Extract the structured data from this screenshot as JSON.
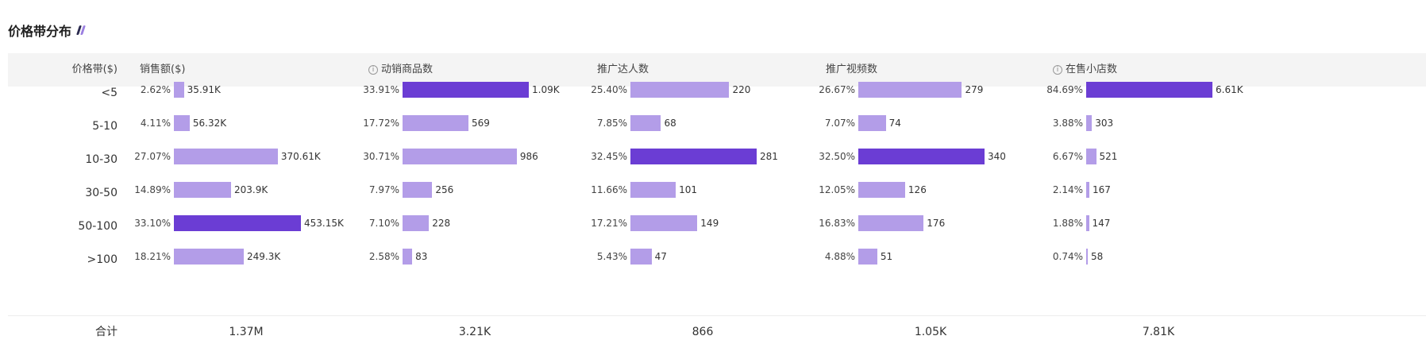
{
  "title": "价格带分布",
  "header": {
    "price_band": "价格带($)",
    "columns": [
      {
        "label": "销售额($)",
        "info": false
      },
      {
        "label": "动销商品数",
        "info": true
      },
      {
        "label": "推广达人数",
        "info": false
      },
      {
        "label": "推广视频数",
        "info": false
      },
      {
        "label": "在售小店数",
        "info": true
      }
    ]
  },
  "chart_data": {
    "type": "bar",
    "categories": [
      "<5",
      "5-10",
      "10-30",
      "30-50",
      "50-100",
      ">100"
    ],
    "series": [
      {
        "name": "销售额($)",
        "percent": [
          "2.62%",
          "4.11%",
          "27.07%",
          "14.89%",
          "33.10%",
          "18.21%"
        ],
        "display": [
          "35.91K",
          "56.32K",
          "370.61K",
          "203.9K",
          "453.15K",
          "249.3K"
        ],
        "values": [
          35910,
          56320,
          370610,
          203900,
          453150,
          249300
        ],
        "total": "1.37M"
      },
      {
        "name": "动销商品数",
        "percent": [
          "33.91%",
          "17.72%",
          "30.71%",
          "7.97%",
          "7.10%",
          "2.58%"
        ],
        "display": [
          "1.09K",
          "569",
          "986",
          "256",
          "228",
          "83"
        ],
        "values": [
          1090,
          569,
          986,
          256,
          228,
          83
        ],
        "total": "3.21K"
      },
      {
        "name": "推广达人数",
        "percent": [
          "25.40%",
          "7.85%",
          "32.45%",
          "11.66%",
          "17.21%",
          "5.43%"
        ],
        "display": [
          "220",
          "68",
          "281",
          "101",
          "149",
          "47"
        ],
        "values": [
          220,
          68,
          281,
          101,
          149,
          47
        ],
        "total": "866"
      },
      {
        "name": "推广视频数",
        "percent": [
          "26.67%",
          "7.07%",
          "32.50%",
          "12.05%",
          "16.83%",
          "4.88%"
        ],
        "display": [
          "279",
          "74",
          "340",
          "126",
          "176",
          "51"
        ],
        "values": [
          279,
          74,
          340,
          126,
          176,
          51
        ],
        "total": "1.05K"
      },
      {
        "name": "在售小店数",
        "percent": [
          "84.69%",
          "3.88%",
          "6.67%",
          "2.14%",
          "1.88%",
          "0.74%"
        ],
        "display": [
          "6.61K",
          "303",
          "521",
          "167",
          "147",
          "58"
        ],
        "values": [
          6610,
          303,
          521,
          167,
          147,
          58
        ],
        "total": "7.81K"
      }
    ],
    "total_label": "合计"
  },
  "colors": {
    "bar": "#b39de8",
    "bar_max": "#6b3dd4",
    "header_bg": "#f4f4f4"
  }
}
